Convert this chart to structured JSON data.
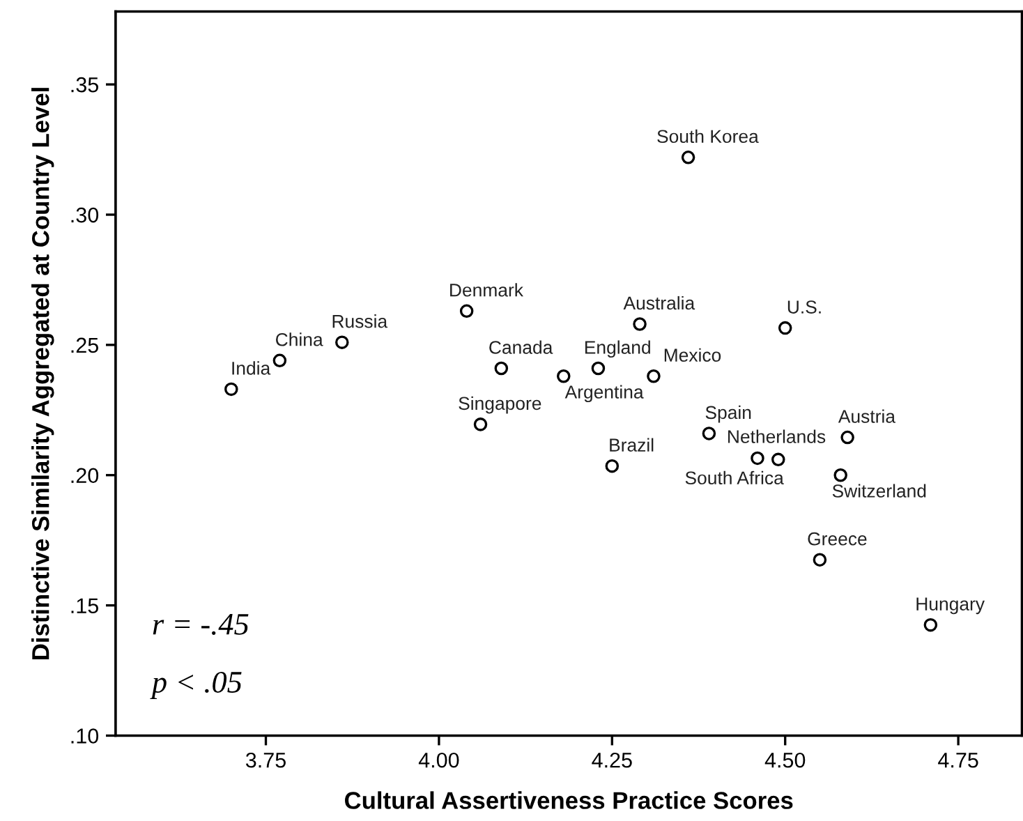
{
  "chart_data": {
    "type": "scatter",
    "xlabel": "Cultural Assertiveness Practice Scores",
    "ylabel": "Distinctive Similarity Aggregated at Country Level",
    "x": [
      3.7,
      3.77,
      3.86,
      4.04,
      4.09,
      4.06,
      4.18,
      4.23,
      4.29,
      4.31,
      4.36,
      4.25,
      4.5,
      4.39,
      4.46,
      4.49,
      4.59,
      4.58,
      4.55,
      4.71
    ],
    "series": [
      {
        "color": "#000000",
        "values": [
          0.233,
          0.244,
          0.251,
          0.263,
          0.241,
          0.2195,
          0.238,
          0.241,
          0.258,
          0.238,
          0.322,
          0.2035,
          0.2565,
          0.216,
          0.2065,
          0.206,
          0.2145,
          0.2,
          0.1675,
          0.1425
        ]
      }
    ],
    "annotations": [
      {
        "text": "India",
        "x": 3.7,
        "y": 0.233
      },
      {
        "text": "China",
        "x": 3.77,
        "y": 0.244
      },
      {
        "text": "Russia",
        "x": 3.86,
        "y": 0.251
      },
      {
        "text": "Denmark",
        "x": 4.04,
        "y": 0.263
      },
      {
        "text": "Canada",
        "x": 4.09,
        "y": 0.241
      },
      {
        "text": "Singapore",
        "x": 4.06,
        "y": 0.2195
      },
      {
        "text": "Argentina",
        "x": 4.18,
        "y": 0.238
      },
      {
        "text": "England",
        "x": 4.23,
        "y": 0.241
      },
      {
        "text": "Australia",
        "x": 4.29,
        "y": 0.258
      },
      {
        "text": "Mexico",
        "x": 4.31,
        "y": 0.238
      },
      {
        "text": "South Korea",
        "x": 4.36,
        "y": 0.322
      },
      {
        "text": "Brazil",
        "x": 4.25,
        "y": 0.2035
      },
      {
        "text": "U.S.",
        "x": 4.5,
        "y": 0.2565
      },
      {
        "text": "Spain",
        "x": 4.39,
        "y": 0.216
      },
      {
        "text": "South Africa",
        "x": 4.46,
        "y": 0.2065
      },
      {
        "text": "Netherlands",
        "x": 4.49,
        "y": 0.206
      },
      {
        "text": "Austria",
        "x": 4.59,
        "y": 0.2145
      },
      {
        "text": "Switzerland",
        "x": 4.58,
        "y": 0.2
      },
      {
        "text": "Greece",
        "x": 4.55,
        "y": 0.1675
      },
      {
        "text": "Hungary",
        "x": 4.71,
        "y": 0.1425
      },
      "r = -.45",
      "p < .05"
    ],
    "xlim": [
      3.533,
      4.842
    ],
    "ylim": [
      0.1,
      0.378
    ],
    "xticks": [
      {
        "value": 3.75,
        "label": "3.75"
      },
      {
        "value": 4.0,
        "label": "4.00"
      },
      {
        "value": 4.25,
        "label": "4.25"
      },
      {
        "value": 4.5,
        "label": "4.50"
      },
      {
        "value": 4.75,
        "label": "4.75"
      }
    ],
    "yticks": [
      {
        "value": 0.1,
        "label": ".10"
      },
      {
        "value": 0.15,
        "label": ".15"
      },
      {
        "value": 0.2,
        "label": ".20"
      },
      {
        "value": 0.25,
        "label": ".25"
      },
      {
        "value": 0.3,
        "label": ".30"
      },
      {
        "value": 0.35,
        "label": ".35"
      }
    ],
    "grid": false,
    "legend": false,
    "marker": "circle"
  }
}
